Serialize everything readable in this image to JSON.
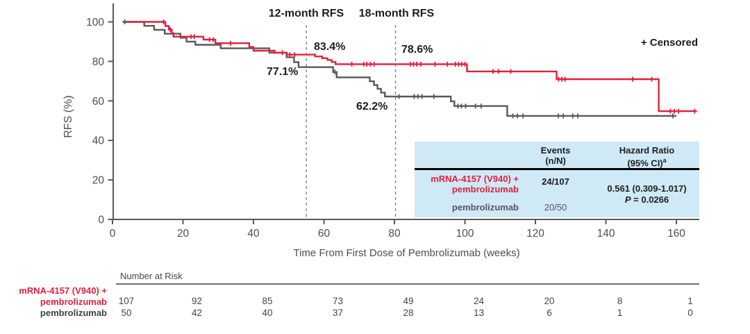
{
  "chart_data": {
    "type": "line",
    "subtype": "kaplan-meier-step",
    "title": "",
    "xlabel": "Time From First Dose of Pembrolizumab (weeks)",
    "ylabel": "RFS (%)",
    "xlim": [
      0,
      166
    ],
    "ylim": [
      0,
      105
    ],
    "xticks": [
      0,
      20,
      40,
      60,
      80,
      100,
      120,
      140,
      160
    ],
    "yticks": [
      0,
      20,
      40,
      60,
      80,
      100
    ],
    "grid": false,
    "legend": {
      "censored_marker": "+",
      "censored_label": "+ Censored",
      "position": "top-right"
    },
    "dashed_vlines": [
      {
        "week": 55,
        "label": "12-month RFS"
      },
      {
        "week": 80.3,
        "label": "18-month RFS"
      }
    ],
    "annotations": {
      "rfs_12_label": "12-month RFS",
      "rfs_18_label": "18-month RFS",
      "red_12": "83.4%",
      "red_18": "78.6%",
      "gray_12": "77.1%",
      "gray_18": "62.2%",
      "censored": "+ Censored"
    },
    "series": [
      {
        "name": "pembrolizumab",
        "color": "#58595b",
        "events_n_N": "20/50",
        "start_week": 3,
        "start_value": 100,
        "end_week": 160,
        "steps": [
          [
            9,
            98
          ],
          [
            11.8,
            96
          ],
          [
            14.8,
            94
          ],
          [
            19.3,
            92
          ],
          [
            21,
            90
          ],
          [
            23.5,
            88.4
          ],
          [
            30.7,
            86.6
          ],
          [
            44.5,
            84.4
          ],
          [
            49.4,
            82.1
          ],
          [
            51.5,
            79.6
          ],
          [
            52.8,
            77.1
          ],
          [
            62.6,
            74.6
          ],
          [
            63.6,
            71.9
          ],
          [
            73,
            69.9
          ],
          [
            74.2,
            68
          ],
          [
            75.2,
            66.1
          ],
          [
            76.2,
            64.2
          ],
          [
            77.3,
            62.2
          ],
          [
            96,
            59.8
          ],
          [
            97,
            57.4
          ],
          [
            112,
            52.4
          ]
        ],
        "censors": [
          [
            3.5,
            100
          ],
          [
            63.1,
            74.6
          ],
          [
            81.3,
            62.2
          ],
          [
            85.6,
            62.2
          ],
          [
            86.7,
            62.2
          ],
          [
            87.8,
            62.2
          ],
          [
            91.2,
            62.2
          ],
          [
            98,
            57.4
          ],
          [
            99,
            57.4
          ],
          [
            100.2,
            57.4
          ],
          [
            103,
            57.4
          ],
          [
            104.6,
            57.4
          ],
          [
            113.6,
            52.4
          ],
          [
            114.9,
            52.4
          ],
          [
            116.5,
            52.4
          ],
          [
            126.5,
            52.4
          ],
          [
            127.9,
            52.4
          ],
          [
            130.6,
            52.4
          ],
          [
            132,
            52.4
          ],
          [
            159,
            52.4
          ]
        ],
        "milestones": {
          "rfs_12": "77.1%",
          "rfs_18": "62.2%"
        }
      },
      {
        "name": "mRNA-4157 (V940) + pembrolizumab",
        "color": "#e21f3d",
        "events_n_N": "24/107",
        "start_week": 3,
        "start_value": 100,
        "end_week": 165.5,
        "steps": [
          [
            15,
            97.9
          ],
          [
            16,
            96.1
          ],
          [
            16.8,
            94.3
          ],
          [
            17.3,
            92.5
          ],
          [
            25.8,
            91
          ],
          [
            29.2,
            89.2
          ],
          [
            38.8,
            87.3
          ],
          [
            40,
            85.4
          ],
          [
            46,
            84.4
          ],
          [
            49.5,
            83.4
          ],
          [
            57.5,
            82.5
          ],
          [
            59.5,
            81.6
          ],
          [
            61,
            80.7
          ],
          [
            62.2,
            79.7
          ],
          [
            63.3,
            78.6
          ],
          [
            100.6,
            74.9
          ],
          [
            126,
            71
          ],
          [
            155,
            54.8
          ]
        ],
        "censors": [
          [
            14.5,
            100
          ],
          [
            16.4,
            96.1
          ],
          [
            22.3,
            92.5
          ],
          [
            23.2,
            92.5
          ],
          [
            27.5,
            91
          ],
          [
            28.6,
            91
          ],
          [
            33.5,
            89.2
          ],
          [
            48.2,
            84.4
          ],
          [
            50.3,
            83.4
          ],
          [
            51.7,
            83.4
          ],
          [
            67.9,
            78.6
          ],
          [
            71.3,
            78.6
          ],
          [
            72.2,
            78.6
          ],
          [
            73.2,
            78.6
          ],
          [
            74.2,
            78.6
          ],
          [
            84.5,
            78.6
          ],
          [
            85.4,
            78.6
          ],
          [
            86.3,
            78.6
          ],
          [
            87.5,
            78.6
          ],
          [
            91.5,
            78.6
          ],
          [
            95,
            78.6
          ],
          [
            97.3,
            78.6
          ],
          [
            98.2,
            78.6
          ],
          [
            99.1,
            78.6
          ],
          [
            100,
            78.6
          ],
          [
            108,
            74.9
          ],
          [
            109.5,
            74.9
          ],
          [
            113,
            74.9
          ],
          [
            126.6,
            71
          ],
          [
            127.5,
            71
          ],
          [
            128.4,
            71
          ],
          [
            147.6,
            71
          ],
          [
            153,
            71
          ],
          [
            158.3,
            54.8
          ],
          [
            159.4,
            54.8
          ],
          [
            160.6,
            54.8
          ],
          [
            165.2,
            54.8
          ]
        ],
        "milestones": {
          "rfs_12": "83.4%",
          "rfs_18": "78.6%"
        }
      }
    ]
  },
  "hr_table": {
    "header_events_line1": "Events",
    "header_events_line2": "(n/N)",
    "header_hr_line1": "Hazard Ratio",
    "header_hr_line2": "(95% CI)",
    "header_hr_sup": "a",
    "rows": [
      {
        "label_line1": "mRNA-4157 (V940) +",
        "label_line2": "pembrolizumab",
        "events": "24/107"
      },
      {
        "label_line1": "pembrolizumab",
        "events": "20/50"
      }
    ],
    "hazard_ratio": "0.561 (0.309-1.017)",
    "p_label": "P",
    "p_value": " = 0.0266"
  },
  "number_at_risk": {
    "title": "Number at Risk",
    "times": [
      0,
      20,
      40,
      60,
      80,
      100,
      120,
      140,
      160
    ],
    "rows": [
      {
        "label_line1": "mRNA-4157 (V940) +",
        "label_line2": "pembrolizumab",
        "color": "#e21f3d",
        "values": [
          "107",
          "92",
          "85",
          "73",
          "49",
          "24",
          "20",
          "8",
          "1"
        ]
      },
      {
        "label_line1": "pembrolizumab",
        "label_line2": "",
        "color": "#3f4042",
        "values": [
          "50",
          "42",
          "40",
          "37",
          "28",
          "13",
          "6",
          "1",
          "0"
        ]
      }
    ]
  }
}
